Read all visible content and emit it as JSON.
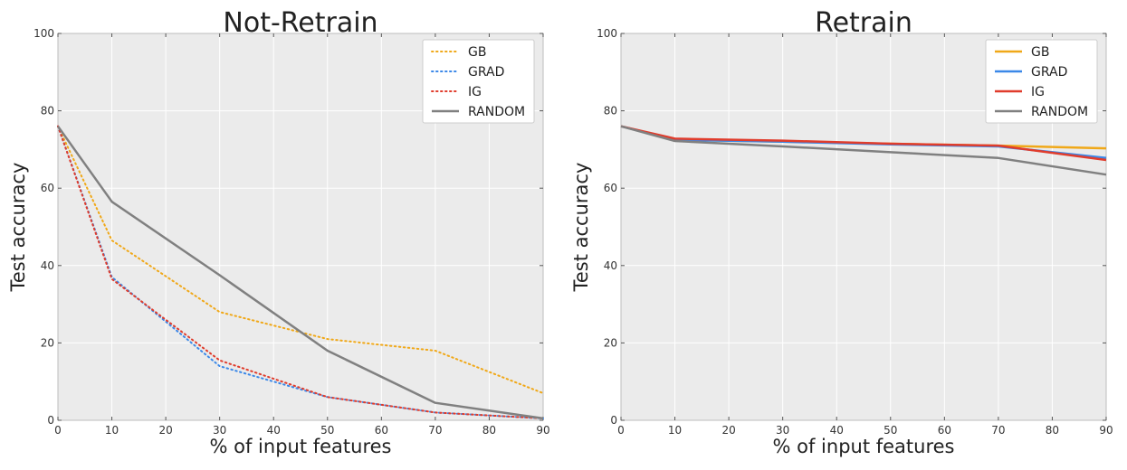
{
  "chart_data": [
    {
      "type": "line",
      "title": "Not-Retrain",
      "xlabel": "% of input features",
      "ylabel": "Test accuracy",
      "xlim": [
        0,
        90
      ],
      "ylim": [
        0,
        100
      ],
      "xticks": [
        0,
        10,
        20,
        30,
        40,
        50,
        60,
        70,
        80,
        90
      ],
      "yticks": [
        0,
        20,
        40,
        60,
        80,
        100
      ],
      "grid": true,
      "legend_position": "top-right",
      "x": [
        0,
        10,
        30,
        50,
        70,
        90
      ],
      "series": [
        {
          "name": "GB",
          "style": "dotted",
          "color": "#f0a818",
          "values": [
            76.0,
            46.5,
            28.0,
            21.0,
            18.0,
            7.0
          ]
        },
        {
          "name": "GRAD",
          "style": "dotted",
          "color": "#3b88e8",
          "values": [
            76.0,
            37.0,
            14.0,
            6.0,
            2.0,
            0.5
          ]
        },
        {
          "name": "IG",
          "style": "dotted",
          "color": "#e03c2c",
          "values": [
            76.0,
            36.5,
            15.5,
            6.0,
            2.0,
            0.5
          ]
        },
        {
          "name": "RANDOM",
          "style": "solid",
          "color": "#808080",
          "values": [
            76.0,
            56.5,
            37.5,
            18.0,
            4.5,
            0.5
          ]
        }
      ]
    },
    {
      "type": "line",
      "title": "Retrain",
      "xlabel": "% of input features",
      "ylabel": "Test accuracy",
      "xlim": [
        0,
        90
      ],
      "ylim": [
        0,
        100
      ],
      "xticks": [
        0,
        10,
        20,
        30,
        40,
        50,
        60,
        70,
        80,
        90
      ],
      "yticks": [
        0,
        20,
        40,
        60,
        80,
        100
      ],
      "grid": true,
      "legend_position": "top-right",
      "x": [
        0,
        10,
        30,
        50,
        70,
        90
      ],
      "series": [
        {
          "name": "GB",
          "style": "solid",
          "color": "#f0a818",
          "values": [
            76.0,
            72.5,
            72.0,
            71.5,
            71.0,
            70.3
          ]
        },
        {
          "name": "GRAD",
          "style": "solid",
          "color": "#3b88e8",
          "values": [
            76.0,
            72.5,
            72.0,
            71.3,
            70.8,
            67.8
          ]
        },
        {
          "name": "IG",
          "style": "solid",
          "color": "#e03c2c",
          "values": [
            76.0,
            72.8,
            72.3,
            71.5,
            71.0,
            67.3
          ]
        },
        {
          "name": "RANDOM",
          "style": "solid",
          "color": "#808080",
          "values": [
            76.0,
            72.2,
            70.8,
            69.3,
            67.8,
            63.5
          ]
        }
      ]
    }
  ]
}
